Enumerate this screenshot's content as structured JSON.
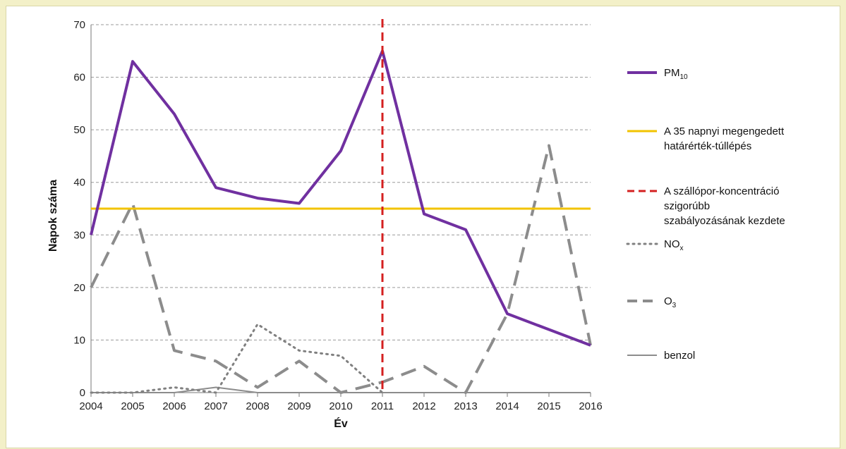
{
  "chart_data": {
    "type": "line",
    "xlabel": "Év",
    "ylabel": "Napok száma",
    "ylim": [
      0,
      70
    ],
    "yticks": [
      0,
      10,
      20,
      30,
      40,
      50,
      60,
      70
    ],
    "x": [
      2004,
      2005,
      2006,
      2007,
      2008,
      2009,
      2010,
      2011,
      2012,
      2013,
      2014,
      2015,
      2016
    ],
    "grid": "horizontal dashed",
    "legend_position": "right",
    "series": [
      {
        "name": "PM10",
        "legend_main": "PM",
        "legend_sub": "10",
        "style": "solid",
        "color": "#7030a0",
        "width": 4,
        "values": [
          30,
          63,
          53,
          39,
          37,
          36,
          46,
          65,
          34,
          31,
          15,
          12,
          9
        ]
      },
      {
        "name": "NOx",
        "legend_main": "NO",
        "legend_sub": "x",
        "style": "dotted",
        "color": "#808080",
        "width": 3,
        "values": [
          0,
          0,
          1,
          0,
          13,
          8,
          7,
          0,
          null,
          null,
          null,
          null,
          null
        ]
      },
      {
        "name": "O3",
        "legend_main": "O",
        "legend_sub": "3",
        "style": "dashed",
        "color": "#8c8c8c",
        "width": 4,
        "values": [
          20,
          36,
          8,
          6,
          1,
          6,
          0,
          2,
          5,
          0,
          15,
          47,
          9
        ]
      },
      {
        "name": "benzol",
        "legend_main": "benzol",
        "legend_sub": "",
        "style": "solid",
        "color": "#8c8c8c",
        "width": 2,
        "values": [
          0,
          0,
          0,
          1,
          0,
          0,
          0,
          0,
          0,
          0,
          0,
          0,
          0
        ]
      }
    ],
    "reference_lines": [
      {
        "orientation": "horizontal",
        "value": 35,
        "style": "solid",
        "color": "#f2c300",
        "width": 3,
        "legend_lines": [
          "A 35 napnyi megengedett",
          "határérték-túllépés"
        ]
      },
      {
        "orientation": "vertical",
        "value": 2011,
        "style": "dashed",
        "color": "#d42020",
        "width": 3,
        "legend_lines": [
          "A szállópor-koncentráció",
          "szigorúbb",
          "szabályozásának kezdete"
        ]
      }
    ],
    "legend_order": [
      "s:0",
      "r:0",
      "r:1",
      "s:1",
      "s:2",
      "s:3"
    ]
  }
}
